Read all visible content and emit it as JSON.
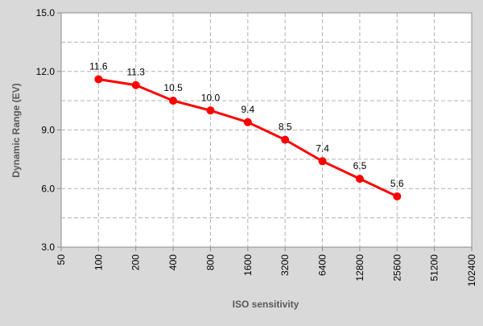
{
  "chart_data": {
    "type": "line",
    "title": "",
    "xlabel": "ISO sensitivity",
    "ylabel": "Dynamic Range (EV)",
    "x_scale": "log2",
    "x_ticks": [
      "50",
      "100",
      "200",
      "400",
      "800",
      "1600",
      "3200",
      "6400",
      "12800",
      "25600",
      "51200",
      "102400"
    ],
    "y_ticks": [
      "3.0",
      "6.0",
      "9.0",
      "12.0",
      "15.0"
    ],
    "ylim": [
      3.0,
      15.0
    ],
    "grid": true,
    "legend": "none",
    "colors": {
      "series": "#ff0000",
      "background": "#d9d9d9",
      "plot_area": "#ffffff",
      "grid": "#b3b3b3"
    },
    "series": [
      {
        "x": [
          100,
          200,
          400,
          800,
          1600,
          3200,
          6400,
          12800,
          25600
        ],
        "values": [
          11.6,
          11.3,
          10.5,
          10.0,
          9.4,
          8.5,
          7.4,
          6.5,
          5.6
        ],
        "labels": [
          "11.6",
          "11.3",
          "10.5",
          "10.0",
          "9.4",
          "8.5",
          "7.4",
          "6.5",
          "5.6"
        ]
      }
    ]
  }
}
